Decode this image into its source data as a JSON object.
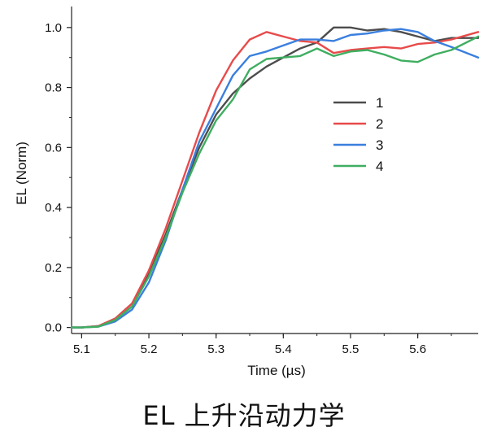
{
  "caption": "EL 上升沿动力学",
  "chart_data": {
    "type": "line",
    "xlabel": "Time (µs)",
    "ylabel": "EL (Norm)",
    "xlim": [
      5.085,
      5.69
    ],
    "ylim": [
      -0.02,
      1.07
    ],
    "xticks": [
      5.1,
      5.2,
      5.3,
      5.4,
      5.5,
      5.6
    ],
    "xtick_labels": [
      "5.1",
      "5.2",
      "5.3",
      "5.4",
      "5.5",
      "5.6"
    ],
    "yticks": [
      0.0,
      0.2,
      0.4,
      0.6,
      0.8,
      1.0
    ],
    "ytick_labels": [
      "0.0",
      "0.2",
      "0.4",
      "0.6",
      "0.8",
      "1.0"
    ],
    "grid": false,
    "legend_position": "center-right",
    "series": [
      {
        "name": "1",
        "color": "#4d4d4d",
        "x": [
          5.085,
          5.1,
          5.125,
          5.15,
          5.175,
          5.2,
          5.225,
          5.25,
          5.275,
          5.3,
          5.325,
          5.35,
          5.375,
          5.4,
          5.425,
          5.45,
          5.475,
          5.5,
          5.525,
          5.55,
          5.575,
          5.6,
          5.625,
          5.65,
          5.69
        ],
        "y": [
          0.0,
          0.0,
          0.005,
          0.03,
          0.08,
          0.18,
          0.31,
          0.46,
          0.6,
          0.71,
          0.78,
          0.83,
          0.87,
          0.9,
          0.93,
          0.95,
          1.0,
          1.0,
          0.99,
          0.995,
          0.985,
          0.97,
          0.955,
          0.965,
          0.965
        ]
      },
      {
        "name": "2",
        "color": "#e84a4a",
        "x": [
          5.085,
          5.1,
          5.125,
          5.15,
          5.175,
          5.2,
          5.225,
          5.25,
          5.275,
          5.3,
          5.325,
          5.35,
          5.375,
          5.4,
          5.425,
          5.45,
          5.475,
          5.5,
          5.525,
          5.55,
          5.575,
          5.6,
          5.625,
          5.65,
          5.69
        ],
        "y": [
          0.0,
          0.0,
          0.005,
          0.03,
          0.08,
          0.19,
          0.33,
          0.49,
          0.65,
          0.79,
          0.89,
          0.96,
          0.985,
          0.97,
          0.955,
          0.95,
          0.915,
          0.925,
          0.93,
          0.935,
          0.93,
          0.945,
          0.95,
          0.96,
          0.985
        ]
      },
      {
        "name": "3",
        "color": "#3a7fde",
        "x": [
          5.085,
          5.1,
          5.125,
          5.15,
          5.175,
          5.2,
          5.225,
          5.25,
          5.275,
          5.3,
          5.325,
          5.35,
          5.375,
          5.4,
          5.425,
          5.45,
          5.475,
          5.5,
          5.525,
          5.55,
          5.575,
          5.6,
          5.625,
          5.65,
          5.69
        ],
        "y": [
          0.0,
          0.0,
          0.003,
          0.02,
          0.06,
          0.15,
          0.29,
          0.46,
          0.62,
          0.73,
          0.84,
          0.905,
          0.92,
          0.94,
          0.96,
          0.96,
          0.955,
          0.975,
          0.98,
          0.99,
          0.995,
          0.985,
          0.955,
          0.935,
          0.9
        ]
      },
      {
        "name": "4",
        "color": "#3fae60",
        "x": [
          5.085,
          5.1,
          5.125,
          5.15,
          5.175,
          5.2,
          5.225,
          5.25,
          5.275,
          5.3,
          5.325,
          5.35,
          5.375,
          5.4,
          5.425,
          5.45,
          5.475,
          5.5,
          5.525,
          5.55,
          5.575,
          5.6,
          5.625,
          5.65,
          5.69
        ],
        "y": [
          0.0,
          0.0,
          0.003,
          0.025,
          0.07,
          0.17,
          0.3,
          0.45,
          0.58,
          0.69,
          0.76,
          0.86,
          0.895,
          0.9,
          0.905,
          0.93,
          0.905,
          0.92,
          0.925,
          0.91,
          0.89,
          0.885,
          0.91,
          0.925,
          0.97
        ]
      }
    ]
  }
}
